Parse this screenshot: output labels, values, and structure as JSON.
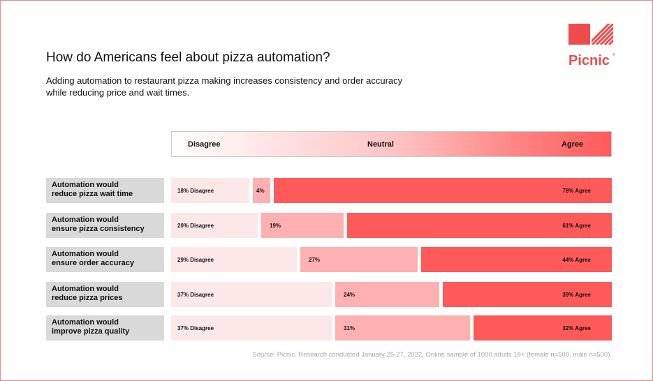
{
  "title": "How do Americans feel about pizza automation?",
  "subtitle": "Adding automation to restaurant pizza making increases consistency and order accuracy while reducing price and wait times.",
  "logo": {
    "text": "Picnic",
    "reg": "®",
    "icon": "picnic-logo-icon"
  },
  "scale": {
    "left": "Disagree",
    "middle": "Neutral",
    "right": "Agree"
  },
  "colors": {
    "disagree": "#fde8e8",
    "neutral": "#ffb0b0",
    "agree": "#ff5a5a",
    "label_bg": "#d9d9d9",
    "brand": "#ef4b4b"
  },
  "source": "Source: Picnic.    Research conducted January 25-27, 2022. Online sample of 1000 adults 18+ (female n=500, male n=500).",
  "chart_data": {
    "type": "bar",
    "stacked": true,
    "orientation": "horizontal",
    "categories": [
      "Automation would reduce pizza wait time",
      "Automation would ensure pizza consistency",
      "Automation would ensure order accuracy",
      "Automation would reduce pizza prices",
      "Automation would improve pizza quality"
    ],
    "category_lines": [
      [
        "Automation would",
        "reduce pizza wait time"
      ],
      [
        "Automation would",
        "ensure pizza consistency"
      ],
      [
        "Automation would",
        "ensure order accuracy"
      ],
      [
        "Automation would",
        "reduce pizza prices"
      ],
      [
        "Automation would",
        "improve pizza quality"
      ]
    ],
    "series": [
      {
        "name": "Disagree",
        "values": [
          18,
          20,
          29,
          37,
          37
        ],
        "labels": [
          "18% Disagree",
          "20% Disagree",
          "29% Disagree",
          "37% Disagree",
          "37% Disagree"
        ]
      },
      {
        "name": "Neutral",
        "values": [
          4,
          19,
          27,
          24,
          31
        ],
        "labels": [
          "4%",
          "19%",
          "27%",
          "24%",
          "31%"
        ]
      },
      {
        "name": "Agree",
        "values": [
          78,
          61,
          44,
          39,
          32
        ],
        "labels": [
          "78% Agree",
          "61% Agree",
          "44% Agree",
          "39% Agree",
          "32% Agree"
        ]
      }
    ],
    "xlim": [
      0,
      100
    ],
    "grid": false,
    "legend": "top"
  }
}
